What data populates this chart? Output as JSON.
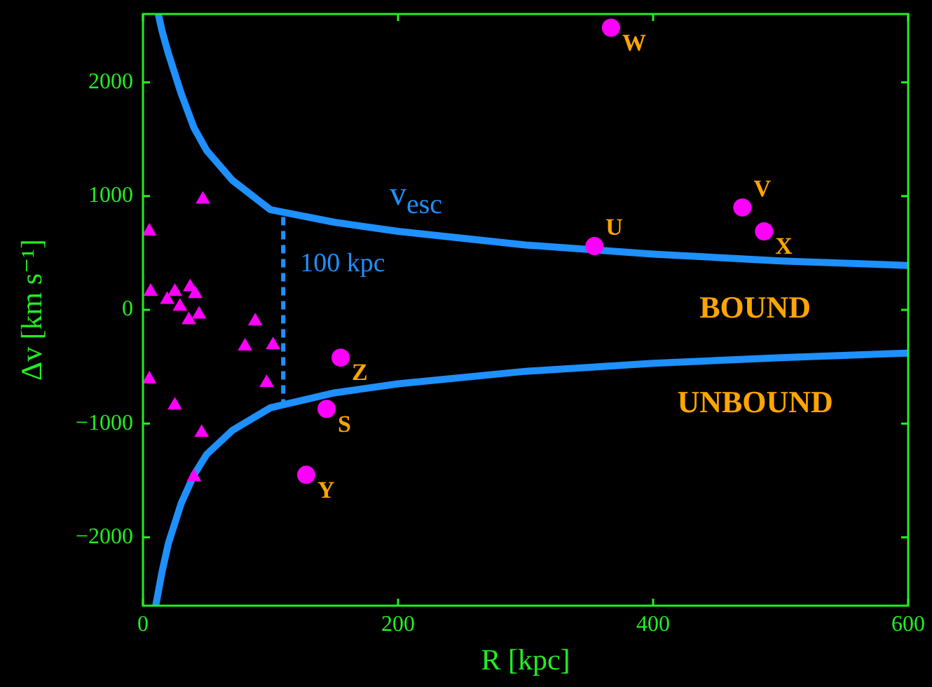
{
  "chart_data": {
    "type": "scatter",
    "xlabel": "R [kpc]",
    "ylabel": "Δv [km s⁻¹]",
    "xlim": [
      0,
      600
    ],
    "xticks": [
      0,
      200,
      400,
      600
    ],
    "ylim": [
      -2600,
      2600
    ],
    "yticks": [
      {
        "value": -2000,
        "label": "−2000"
      },
      {
        "value": -1000,
        "label": "−1000"
      },
      0,
      1000,
      2000
    ],
    "grid": false,
    "legend": false,
    "series": [
      {
        "type": "line",
        "name": "v$_{esc}$",
        "color": "#1e90ff",
        "line_style": "solid",
        "marker": "none",
        "x": [
          12,
          15,
          20,
          30,
          40,
          50,
          70,
          100,
          150,
          200,
          300,
          400,
          500,
          600
        ],
        "values": [
          2600,
          2450,
          2250,
          1900,
          1600,
          1400,
          1140,
          880,
          770,
          690,
          570,
          490,
          430,
          390
        ]
      },
      {
        "type": "line",
        "color": "#1e90ff",
        "line_style": "solid",
        "marker": "none",
        "x": [
          10,
          15,
          20,
          30,
          40,
          50,
          70,
          100,
          150,
          200,
          300,
          400,
          500,
          600
        ],
        "values": [
          -2600,
          -2300,
          -2050,
          -1700,
          -1450,
          -1270,
          -1060,
          -860,
          -730,
          -650,
          -540,
          -470,
          -420,
          -380
        ]
      },
      {
        "type": "line",
        "color": "#1e90ff",
        "line_style": "dashed",
        "marker": "none",
        "x": [
          110,
          110
        ],
        "values": [
          -860,
          870
        ]
      },
      {
        "color": "#ff00ff",
        "marker": "triangle",
        "x": [
          47,
          5,
          6,
          25,
          19,
          29,
          37,
          41,
          44,
          36,
          88,
          80,
          102,
          5,
          97,
          25,
          46,
          40
        ],
        "values": [
          970,
          690,
          160,
          160,
          90,
          30,
          200,
          140,
          -40,
          -90,
          -100,
          -320,
          -310,
          -610,
          -640,
          -840,
          -1080,
          -1470
        ]
      },
      {
        "color": "#ff00ff",
        "marker": "circle",
        "x": [
          155,
          144,
          128,
          367,
          354,
          470,
          487
        ],
        "values": [
          -420,
          -870,
          -1450,
          2480,
          560,
          900,
          690
        ]
      }
    ],
    "annotations": [
      {
        "text": "Z",
        "x": 155,
        "y": -416
      },
      {
        "text": "S",
        "x": 144,
        "y": -873
      },
      {
        "text": "Y",
        "x": 128,
        "y": -1448
      },
      {
        "text": "W",
        "x": 367,
        "y": 2481
      },
      {
        "text": "U",
        "x": 354,
        "y": 563
      },
      {
        "text": "V",
        "x": 470,
        "y": 902
      },
      {
        "text": "X",
        "x": 487,
        "y": 694
      },
      {
        "text": "100 kpc",
        "x": 110,
        "y": 400
      },
      "BOUND",
      "UNBOUND"
    ]
  }
}
